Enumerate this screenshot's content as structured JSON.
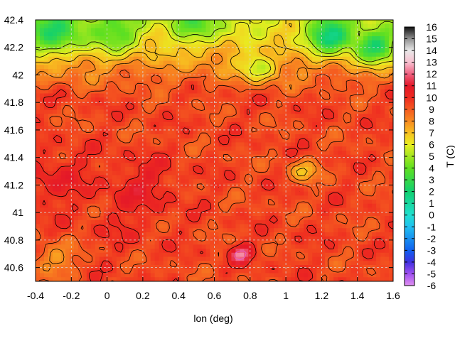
{
  "chart_data": {
    "type": "heatmap",
    "title": "",
    "xlabel": "lon (deg)",
    "ylabel": "",
    "colorbar_label": "T (C)",
    "xlim": [
      -0.4,
      1.6
    ],
    "ylim": [
      40.5,
      42.4
    ],
    "xticks": [
      -0.4,
      -0.2,
      0,
      0.2,
      0.4,
      0.6,
      0.8,
      1,
      1.2,
      1.4,
      1.6
    ],
    "xtick_labels": [
      "-0.4",
      "-0.2",
      "0",
      "0.2",
      "0.4",
      "0.6",
      "0.8",
      "1",
      "1.2",
      "1.4",
      "1.6"
    ],
    "yticks": [
      40.6,
      40.8,
      41,
      41.2,
      41.4,
      41.6,
      41.8,
      42,
      42.2,
      42.4
    ],
    "ytick_labels": [
      "40.6",
      "40.8",
      "41",
      "41.2",
      "41.4",
      "41.6",
      "41.8",
      "42",
      "42.2",
      "42.4"
    ],
    "colorbar_range": [
      -6,
      16
    ],
    "colorbar_ticks": [
      -6,
      -5,
      -4,
      -3,
      -2,
      -1,
      0,
      1,
      2,
      3,
      4,
      5,
      6,
      7,
      8,
      9,
      10,
      11,
      12,
      13,
      14,
      15,
      16
    ],
    "colorbar_tick_labels": [
      "-6",
      "-5",
      "-4",
      "-3",
      "-2",
      "-1",
      "0",
      "1",
      "2",
      "3",
      "4",
      "5",
      "6",
      "7",
      "8",
      "9",
      "10",
      "11",
      "12",
      "13",
      "14",
      "15",
      "16"
    ],
    "colormap": [
      {
        "v": -6,
        "color": "#e08ff0"
      },
      {
        "v": -5,
        "color": "#a050f0"
      },
      {
        "v": -4,
        "color": "#4030e0"
      },
      {
        "v": -3,
        "color": "#1060f0"
      },
      {
        "v": -1,
        "color": "#20c0f0"
      },
      {
        "v": 0,
        "color": "#20e0d0"
      },
      {
        "v": 2,
        "color": "#10d070"
      },
      {
        "v": 4,
        "color": "#60e020"
      },
      {
        "v": 6,
        "color": "#e8ee20"
      },
      {
        "v": 7,
        "color": "#f8c020"
      },
      {
        "v": 8,
        "color": "#f88a20"
      },
      {
        "v": 9,
        "color": "#f55a20"
      },
      {
        "v": 10,
        "color": "#ee2a20"
      },
      {
        "v": 11,
        "color": "#e41828"
      },
      {
        "v": 12,
        "color": "#f06080"
      },
      {
        "v": 13,
        "color": "#f8c0d0"
      },
      {
        "v": 14,
        "color": "#e8e8e8"
      },
      {
        "v": 15,
        "color": "#909090"
      },
      {
        "v": 16,
        "color": "#101010"
      }
    ],
    "grid": true,
    "contours": true,
    "regions": [
      {
        "lon": -0.3,
        "lat": 42.3,
        "temp": 5.5,
        "spread": 0.18
      },
      {
        "lon": 0.05,
        "lat": 42.3,
        "temp": 6.5,
        "spread": 0.15
      },
      {
        "lon": 0.5,
        "lat": 42.35,
        "temp": 7.0,
        "spread": 0.15
      },
      {
        "lon": 1.25,
        "lat": 42.28,
        "temp": 3.5,
        "spread": 0.12
      },
      {
        "lon": 1.5,
        "lat": 42.2,
        "temp": 4.0,
        "spread": 0.12
      },
      {
        "lon": 0.85,
        "lat": 42.05,
        "temp": 6.0,
        "spread": 0.1
      },
      {
        "lon": -0.3,
        "lat": 41.25,
        "temp": 10.5,
        "spread": 0.2
      },
      {
        "lon": 0.2,
        "lat": 41.2,
        "temp": 10.5,
        "spread": 0.2
      },
      {
        "lon": 0.1,
        "lat": 40.9,
        "temp": 9.8,
        "spread": 0.2
      },
      {
        "lon": 1.1,
        "lat": 41.3,
        "temp": 6.8,
        "spread": 0.08
      },
      {
        "lon": 1.0,
        "lat": 40.7,
        "temp": 9.5,
        "spread": 0.25
      },
      {
        "lon": -0.3,
        "lat": 40.65,
        "temp": 7.5,
        "spread": 0.12
      },
      {
        "lon": 0.75,
        "lat": 40.7,
        "temp": 12.5,
        "spread": 0.06
      }
    ]
  }
}
